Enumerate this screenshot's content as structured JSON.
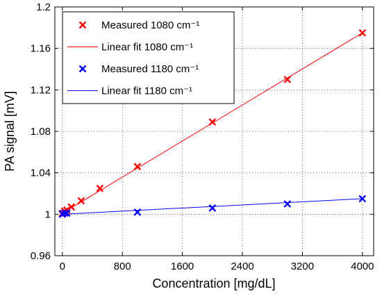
{
  "chart_data": {
    "type": "scatter",
    "xlabel": "Concentration [mg/dL]",
    "ylabel": "PA signal [mV]",
    "xlim": [
      -100,
      4150
    ],
    "ylim": [
      0.96,
      1.2
    ],
    "xticks": [
      0,
      800,
      1600,
      2400,
      3200,
      4000
    ],
    "xtick_labels": [
      "0",
      "800",
      "1600",
      "2400",
      "3200",
      "4000"
    ],
    "yticks": [
      0.96,
      1.0,
      1.04,
      1.08,
      1.12,
      1.16,
      1.2
    ],
    "ytick_labels": [
      "0.96",
      "1",
      "1.04",
      "1.08",
      "1.12",
      "1.16",
      "1.2"
    ],
    "grid": true,
    "legend_position": "top-left",
    "series": [
      {
        "name": "Measured 1080 cm⁻¹",
        "kind": "markers",
        "marker": "x",
        "color": "#ff0000",
        "x": [
          0,
          30,
          60,
          120,
          250,
          500,
          1000,
          2000,
          3000,
          4000
        ],
        "y": [
          1.001,
          1.003,
          1.004,
          1.007,
          1.013,
          1.025,
          1.046,
          1.089,
          1.13,
          1.175
        ]
      },
      {
        "name": "Linear fit 1080 cm⁻¹",
        "kind": "line",
        "color": "#ff0000",
        "x": [
          0,
          4000
        ],
        "y": [
          1.001,
          1.175
        ]
      },
      {
        "name": "Measured 1180 cm⁻¹",
        "kind": "markers",
        "marker": "x",
        "color": "#0000ff",
        "x": [
          0,
          30,
          60,
          1000,
          2000,
          3000,
          4000
        ],
        "y": [
          1.0,
          1.001,
          1.001,
          1.002,
          1.006,
          1.01,
          1.015
        ]
      },
      {
        "name": "Linear fit 1180 cm⁻¹",
        "kind": "line",
        "color": "#0000ff",
        "x": [
          0,
          4000
        ],
        "y": [
          1.0,
          1.015
        ]
      }
    ]
  }
}
